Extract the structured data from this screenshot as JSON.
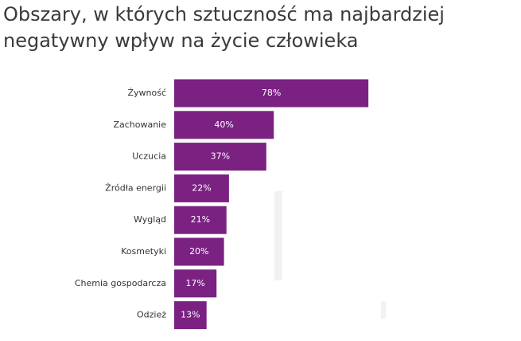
{
  "chart_data": {
    "type": "bar",
    "orientation": "horizontal",
    "title": "Obszary, w których sztuczność ma najbardziej negatywny wpływ na życie człowieka",
    "categories": [
      "Żywność",
      "Zachowanie",
      "Uczucia",
      "Źródła energii",
      "Wygląd",
      "Kosmetyki",
      "Chemia gospodarcza",
      "Odzież"
    ],
    "values": [
      78,
      40,
      37,
      22,
      21,
      20,
      17,
      13
    ],
    "value_labels": [
      "78%",
      "40%",
      "37%",
      "22%",
      "21%",
      "20%",
      "17%",
      "13%"
    ],
    "color": "#7a2182"
  }
}
